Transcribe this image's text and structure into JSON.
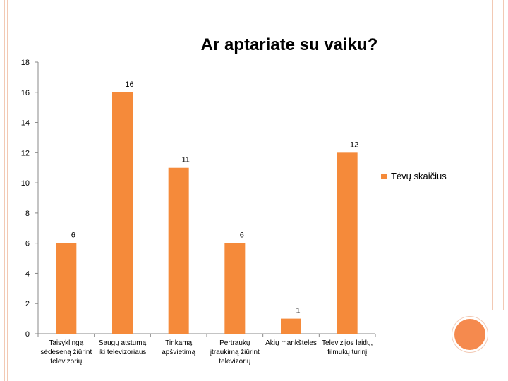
{
  "chart_data": {
    "type": "bar",
    "title": "Ar aptariate su vaiku?",
    "categories": [
      "Taisyklingą sėdėseną žiūrint televizorių",
      "Saugų atstumą iki televizoriaus",
      "Tinkamą apšvietimą",
      "Pertraukų įtraukimą žiūrint televizorių",
      "Akių mankšteles",
      "Televizijos laidų, filmukų turinį"
    ],
    "category_lines": [
      [
        "Taisyklingą",
        "sėdėseną žiūrint",
        "televizorių"
      ],
      [
        "Saugų atstumą",
        "iki televizoriaus"
      ],
      [
        "Tinkamą",
        "apšvietimą"
      ],
      [
        "Pertraukų",
        "įtraukimą žiūrint",
        "televizorių"
      ],
      [
        "Akių mankšteles"
      ],
      [
        "Televizijos laidų,",
        "filmukų turinį"
      ]
    ],
    "series": [
      {
        "name": "Tėvų skaičius",
        "values": [
          6,
          16,
          11,
          6,
          1,
          12
        ]
      }
    ],
    "ylim": [
      0,
      18
    ],
    "yticks": [
      0,
      2,
      4,
      6,
      8,
      10,
      12,
      14,
      16,
      18
    ],
    "legend_position": "right",
    "grid": false,
    "bar_color": "#f58a3a"
  }
}
